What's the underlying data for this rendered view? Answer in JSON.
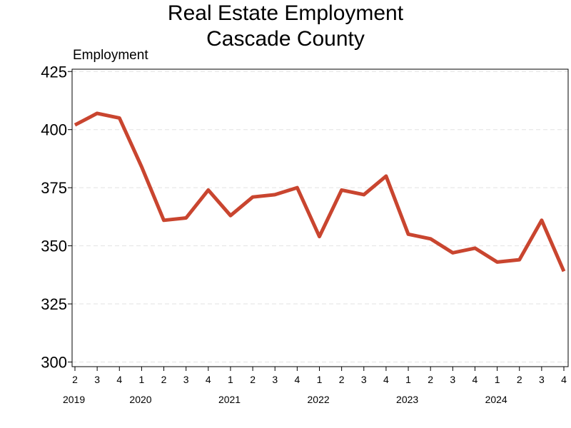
{
  "chart_data": {
    "type": "line",
    "title": [
      "Real Estate Employment",
      "Cascade County"
    ],
    "ylabel": "Employment",
    "xlabel": "",
    "ylim": [
      298,
      426
    ],
    "yticks": [
      300,
      325,
      350,
      375,
      400,
      425
    ],
    "grid": "horizontal dashed",
    "x_quarters": [
      "2",
      "3",
      "4",
      "1",
      "2",
      "3",
      "4",
      "1",
      "2",
      "3",
      "4",
      "1",
      "2",
      "3",
      "4",
      "1",
      "2",
      "3",
      "4",
      "1",
      "2",
      "3",
      "4"
    ],
    "x_years": [
      {
        "label": "2019",
        "start": 0
      },
      {
        "label": "2020",
        "start": 3
      },
      {
        "label": "2021",
        "start": 7
      },
      {
        "label": "2022",
        "start": 11
      },
      {
        "label": "2023",
        "start": 15
      },
      {
        "label": "2024",
        "start": 19
      }
    ],
    "series": [
      {
        "color": "#c9452f",
        "values": [
          402,
          407,
          405,
          384,
          361,
          362,
          374,
          363,
          371,
          372,
          375,
          354,
          374,
          372,
          380,
          355,
          353,
          347,
          349,
          343,
          344,
          361,
          339
        ]
      }
    ]
  }
}
